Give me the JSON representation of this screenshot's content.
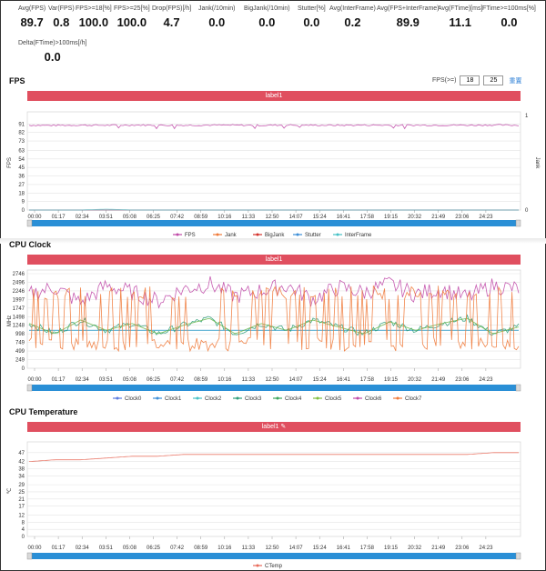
{
  "stats": [
    {
      "label": "Avg(FPS)",
      "value": "89.7"
    },
    {
      "label": "Var(FPS)",
      "value": "0.8"
    },
    {
      "label": "FPS>=18[%]",
      "value": "100.0"
    },
    {
      "label": "FPS>=25[%]",
      "value": "100.0"
    },
    {
      "label": "Drop(FPS)[/h]",
      "value": "4.7"
    },
    {
      "label": "Jank(/10min)",
      "value": "0.0"
    },
    {
      "label": "BigJank(/10min)",
      "value": "0.0"
    },
    {
      "label": "Stutter[%]",
      "value": "0.0"
    },
    {
      "label": "Avg(InterFrame)",
      "value": "0.2"
    },
    {
      "label": "Avg(FPS+InterFrame)",
      "value": "89.9"
    },
    {
      "label": "Avg(FTime)[ms]",
      "value": "11.1"
    },
    {
      "label": "FTime>=100ms[%]",
      "value": "0.0"
    },
    {
      "label": "Delta(FTime)>100ms[/h]",
      "value": "0.0"
    }
  ],
  "fps_section": {
    "title": "FPS",
    "control_label": "FPS(>=)",
    "threshold1": "18",
    "threshold2": "25",
    "reset_label": "重置",
    "banner": "label1"
  },
  "cpu_clock_section": {
    "title": "CPU Clock",
    "banner": "label1"
  },
  "cpu_temp_section": {
    "title": "CPU Temperature",
    "banner": "label1"
  },
  "time_ticks": [
    "00:00",
    "01:17",
    "02:34",
    "03:51",
    "05:08",
    "06:25",
    "07:42",
    "08:59",
    "10:16",
    "11:33",
    "12:50",
    "14:07",
    "15:24",
    "16:41",
    "17:58",
    "19:15",
    "20:32",
    "21:49",
    "23:06",
    "24:23"
  ],
  "chart_data": [
    {
      "type": "line",
      "title": "FPS",
      "ylabel": "FPS",
      "y2label": "Jank",
      "yticks": [
        0,
        9,
        18,
        27,
        36,
        45,
        54,
        63,
        73,
        82,
        91
      ],
      "ylim": [
        0,
        100
      ],
      "y2ticks": [
        0,
        1
      ],
      "y2lim": [
        0,
        1
      ],
      "x": [
        "00:00",
        "01:17",
        "02:34",
        "03:51",
        "05:08",
        "06:25",
        "07:42",
        "08:59",
        "10:16",
        "11:33",
        "12:50",
        "14:07",
        "15:24",
        "16:41",
        "17:58",
        "19:15",
        "20:32",
        "21:49",
        "23:06",
        "24:23"
      ],
      "series": [
        {
          "name": "FPS",
          "color": "#c04aa8",
          "values": [
            89.7,
            89.5,
            89.8,
            89.6,
            89.9,
            89.7,
            89.6,
            89.8,
            89.7,
            89.5,
            89.9,
            89.7,
            89.6,
            89.8,
            89.7,
            89.6,
            89.8,
            89.7,
            89.9,
            89.6
          ]
        },
        {
          "name": "Jank",
          "color": "#f07a3a",
          "values": [
            0,
            0,
            0,
            0,
            0,
            0,
            0,
            0,
            0,
            0,
            0,
            0,
            0,
            0,
            0,
            0,
            0,
            0,
            0,
            0
          ]
        },
        {
          "name": "BigJank",
          "color": "#d4322c",
          "values": [
            0,
            0,
            0,
            0,
            0,
            0,
            0,
            0,
            0,
            0,
            0,
            0,
            0,
            0,
            0,
            0,
            0,
            0,
            0,
            0
          ]
        },
        {
          "name": "Stutter",
          "color": "#3d8fd8",
          "values": [
            0,
            0,
            0,
            0,
            0,
            0,
            0,
            0,
            0,
            0,
            0,
            0,
            0,
            0,
            0,
            0,
            0,
            0,
            0,
            0
          ]
        },
        {
          "name": "InterFrame",
          "color": "#46c1c6",
          "values": [
            0,
            0,
            0,
            1,
            0,
            0,
            0,
            0,
            0,
            0,
            0,
            0,
            0,
            0,
            0,
            0,
            0,
            0,
            0,
            0
          ]
        }
      ],
      "grid": true,
      "legend": "bottom"
    },
    {
      "type": "line",
      "title": "CPU Clock",
      "ylabel": "MHz",
      "yticks": [
        0,
        249,
        499,
        749,
        998,
        1248,
        1498,
        1747,
        1997,
        2246,
        2496,
        2746
      ],
      "ylim": [
        0,
        2746
      ],
      "x": [
        "00:00",
        "01:17",
        "02:34",
        "03:51",
        "05:08",
        "06:25",
        "07:42",
        "08:59",
        "10:16",
        "11:33",
        "12:50",
        "14:07",
        "15:24",
        "16:41",
        "17:58",
        "19:15",
        "20:32",
        "21:49",
        "23:06",
        "24:23"
      ],
      "series": [
        {
          "name": "Clock0",
          "color": "#5b7be0",
          "values": [
            1100,
            1100,
            1100,
            1100,
            1100,
            1100,
            1100,
            1100,
            1100,
            1100,
            1100,
            1100,
            1100,
            1100,
            1100,
            1100,
            1100,
            1100,
            1100,
            1100
          ]
        },
        {
          "name": "Clock1",
          "color": "#3d8fd8",
          "values": [
            1100,
            1100,
            1100,
            1100,
            1100,
            1100,
            1100,
            1100,
            1100,
            1100,
            1100,
            1100,
            1100,
            1100,
            1100,
            1100,
            1100,
            1100,
            1100,
            1100
          ]
        },
        {
          "name": "Clock2",
          "color": "#46c1c6",
          "values": [
            1100,
            1100,
            1100,
            1100,
            1100,
            1100,
            1100,
            1100,
            1100,
            1100,
            1100,
            1100,
            1100,
            1100,
            1100,
            1100,
            1100,
            1100,
            1100,
            1100
          ]
        },
        {
          "name": "Clock3",
          "color": "#2e9e7a",
          "values": [
            1300,
            1000,
            1400,
            1100,
            1300,
            1000,
            1250,
            1450,
            1000,
            1300,
            1100,
            1400,
            1200,
            1000,
            1350,
            1100,
            1300,
            1450,
            1000,
            1200
          ]
        },
        {
          "name": "Clock4",
          "color": "#3ba55c",
          "values": [
            1300,
            1000,
            1400,
            1100,
            1300,
            1000,
            1250,
            1450,
            1000,
            1300,
            1100,
            1400,
            1200,
            1000,
            1350,
            1100,
            1300,
            1450,
            1000,
            1200
          ]
        },
        {
          "name": "Clock5",
          "color": "#7fbf3f",
          "values": [
            1300,
            1000,
            1400,
            1100,
            1300,
            1000,
            1250,
            1450,
            1000,
            1300,
            1100,
            1400,
            1200,
            1000,
            1350,
            1100,
            1300,
            1450,
            1000,
            1200
          ]
        },
        {
          "name": "Clock6",
          "color": "#c04aa8",
          "values": [
            2150,
            2350,
            1900,
            2400,
            2200,
            1950,
            2300,
            2450,
            2100,
            2250,
            2400,
            2000,
            2350,
            2200,
            2450,
            2150,
            2300,
            2050,
            2400,
            2300
          ]
        },
        {
          "name": "Clock7",
          "color": "#f07a3a",
          "values": [
            600,
            2300,
            600,
            2400,
            700,
            600,
            2300,
            600,
            2450,
            600,
            700,
            2300,
            600,
            2400,
            600,
            700,
            2400,
            600,
            2350,
            600
          ]
        }
      ],
      "grid": true,
      "legend": "bottom"
    },
    {
      "type": "line",
      "title": "CPU Temperature",
      "ylabel": "℃",
      "yticks": [
        0,
        4,
        8,
        12,
        17,
        21,
        25,
        29,
        34,
        38,
        42,
        47
      ],
      "ylim": [
        0,
        51
      ],
      "x": [
        "00:00",
        "01:17",
        "02:34",
        "03:51",
        "05:08",
        "06:25",
        "07:42",
        "08:59",
        "10:16",
        "11:33",
        "12:50",
        "14:07",
        "15:24",
        "16:41",
        "17:58",
        "19:15",
        "20:32",
        "21:49",
        "23:06",
        "24:23"
      ],
      "series": [
        {
          "name": "CTemp",
          "color": "#e86b5b",
          "values": [
            42,
            43,
            43,
            44,
            45,
            45,
            46,
            46,
            46,
            46,
            46,
            46,
            46,
            46,
            46,
            46,
            46,
            46,
            47,
            47
          ]
        }
      ],
      "grid": true,
      "legend": "bottom"
    }
  ]
}
